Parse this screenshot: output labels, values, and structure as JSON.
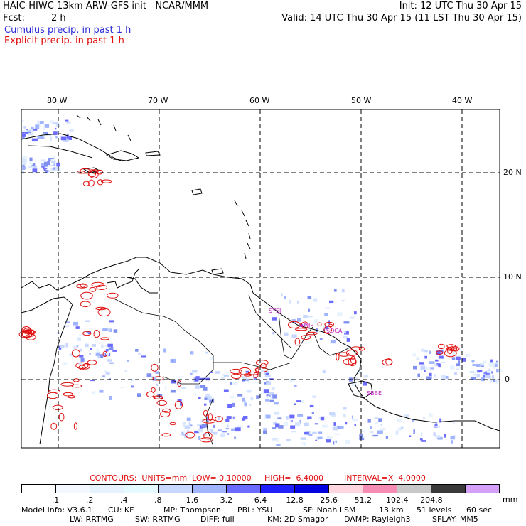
{
  "header": {
    "title_left": "HAIC-HIWC 13km ARW-GFS init   NCAR/MMM",
    "init": "Init: 12 UTC Thu 30 Apr 15",
    "fcst_label": "Fcst:",
    "fcst_value": "2 h",
    "valid": "Valid: 14 UTC Thu 30 Apr 15 (11 LST Thu 30 Apr 15)",
    "cumulus": "Cumulus precip. in past 1 h",
    "explicit": "Explicit precip. in past 1 h"
  },
  "map": {
    "lon_labels": [
      "80 W",
      "70 W",
      "60 W",
      "50 W",
      "40 W"
    ],
    "lat_labels": [
      "20 N",
      "10 N",
      "0"
    ],
    "stations": [
      "SYEJ",
      "SMJP",
      "SOCA",
      "SBBE"
    ],
    "colors": {
      "cumulus": "#7f8cf0",
      "explicit": "#e01010",
      "station": "#c020c0"
    }
  },
  "contours_info": {
    "contours": "CONTOURS:  UNITS=mm  LOW= 0.10000",
    "high": "HIGH=  6.4000",
    "interval": "INTERVAL=X  4.0000"
  },
  "colorbar": {
    "unit": "mm",
    "ticks": [
      ".1",
      ".2",
      ".4",
      ".8",
      "1.6",
      "3.2",
      "6.4",
      "12.8",
      "25.6",
      "51.2",
      "102.4",
      "204.8"
    ],
    "colors": [
      "#ffffff",
      "#f4f9ff",
      "#e6f3ff",
      "#e6fbff",
      "#c8d7ff",
      "#a0b4ff",
      "#6b6bff",
      "#2020ff",
      "#0000e0",
      "#ffd6e0",
      "#f48cb4",
      "#c8c8c8",
      "#3a3a3a",
      "#d4a0f8"
    ]
  },
  "footer": {
    "line1": [
      "Model Info: V3.6.1",
      "CU: KF",
      "MP: Thompson",
      "PBL: YSU",
      "SF: Noah LSM",
      "13 km",
      "51 levels",
      "60 sec"
    ],
    "line2": [
      "LW: RRTMG",
      "SW: RRTMG",
      "DIFF: full",
      "KM: 2D Smagor",
      "DAMP: Rayleigh3",
      "SFLAY: MM5"
    ]
  }
}
